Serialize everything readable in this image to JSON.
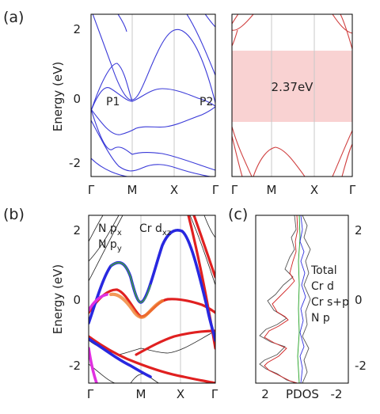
{
  "panels": {
    "a": {
      "label": "(a)",
      "ylabel": "Energy (eV)",
      "y_ticks": [
        "2",
        "0",
        "-2"
      ],
      "x_ticks": [
        "Γ",
        "M",
        "X",
        "Γ"
      ],
      "point_labels": [
        "P1",
        "P2"
      ],
      "gap_label": "2.37eV",
      "band_color": "#3a3ad8",
      "gap_color": "#d04040",
      "gap_fill": "#f9d2d2"
    },
    "b": {
      "label": "(b)",
      "ylabel": "Energy (eV)",
      "y_ticks": [
        "2",
        "0",
        "-2"
      ],
      "x_ticks": [
        "Γ",
        "M",
        "X",
        "Γ"
      ],
      "legend": [
        {
          "text": "N p",
          "sub": "x",
          "color": "#3a3ad8"
        },
        {
          "text": "N p",
          "sub": "y",
          "color": "#e040e0"
        },
        {
          "text": "Cr d",
          "sub": "xz",
          "color": "#e02020"
        }
      ]
    },
    "c": {
      "label": "(c)",
      "xlabel": "PDOS",
      "x_ticks": [
        "2",
        "-2"
      ],
      "y_ticks": [
        "2",
        "0",
        "-2"
      ],
      "legend": [
        {
          "text": "Total",
          "color": "#555555"
        },
        {
          "text": "Cr d",
          "color": "#d02020"
        },
        {
          "text": "Cr s+p",
          "color": "#20a020"
        },
        {
          "text": "N  p",
          "color": "#3030e0"
        }
      ]
    }
  }
}
